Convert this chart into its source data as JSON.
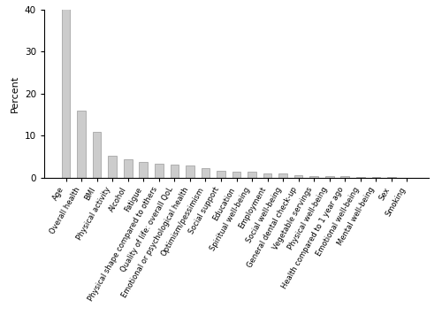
{
  "categories": [
    "Age",
    "Overall health",
    "BMI",
    "Physical activity",
    "Alcohol",
    "Fatigue",
    "Physical shape compared to others",
    "Quality of life: overall QoL",
    "Emotional or psychological health",
    "Optimism/pessimism",
    "Social support",
    "Education",
    "Spiritual well-being",
    "Employment",
    "Social well-being",
    "General dental check-up",
    "Vegetable servings",
    "Physical well-being",
    "Health compared to 1 year ago",
    "Emotional well-being",
    "Mental well-being",
    "Sex",
    "Smoking"
  ],
  "values": [
    40.5,
    16.0,
    11.0,
    5.3,
    4.3,
    3.7,
    3.4,
    3.1,
    3.0,
    2.2,
    1.6,
    1.5,
    1.4,
    1.1,
    0.9,
    0.6,
    0.4,
    0.45,
    0.3,
    0.2,
    0.15,
    0.08,
    0.05
  ],
  "bar_color": "#cccccc",
  "bar_edgecolor": "#999999",
  "ylabel": "Percent",
  "ylim": [
    0,
    40
  ],
  "yticks": [
    0,
    10,
    20,
    30,
    40
  ],
  "background_color": "#ffffff",
  "label_fontsize": 6.0,
  "ylabel_fontsize": 8,
  "bar_width": 0.55,
  "label_rotation": 60
}
